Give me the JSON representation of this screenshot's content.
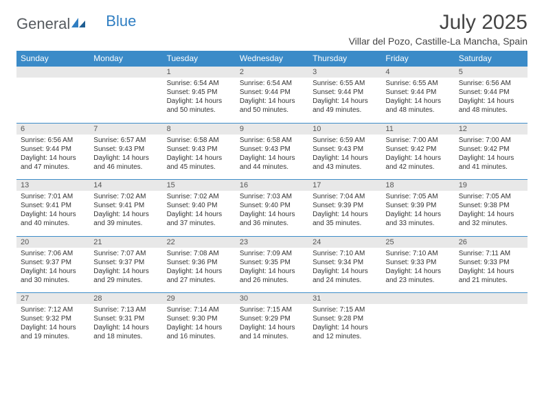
{
  "logo": {
    "text1": "General",
    "text2": "Blue"
  },
  "title": "July 2025",
  "location": "Villar del Pozo, Castille-La Mancha, Spain",
  "colors": {
    "header_bg": "#3b8bc8",
    "header_text": "#ffffff",
    "daynum_bg": "#e8e8e8",
    "border": "#3b8bc8",
    "logo_gray": "#555a5f",
    "logo_blue": "#2f7ec2"
  },
  "weekdays": [
    "Sunday",
    "Monday",
    "Tuesday",
    "Wednesday",
    "Thursday",
    "Friday",
    "Saturday"
  ],
  "weeks": [
    {
      "nums": [
        "",
        "",
        "1",
        "2",
        "3",
        "4",
        "5"
      ],
      "cells": [
        {
          "sunrise": "",
          "sunset": "",
          "daylight1": "",
          "daylight2": ""
        },
        {
          "sunrise": "",
          "sunset": "",
          "daylight1": "",
          "daylight2": ""
        },
        {
          "sunrise": "Sunrise: 6:54 AM",
          "sunset": "Sunset: 9:45 PM",
          "daylight1": "Daylight: 14 hours",
          "daylight2": "and 50 minutes."
        },
        {
          "sunrise": "Sunrise: 6:54 AM",
          "sunset": "Sunset: 9:44 PM",
          "daylight1": "Daylight: 14 hours",
          "daylight2": "and 50 minutes."
        },
        {
          "sunrise": "Sunrise: 6:55 AM",
          "sunset": "Sunset: 9:44 PM",
          "daylight1": "Daylight: 14 hours",
          "daylight2": "and 49 minutes."
        },
        {
          "sunrise": "Sunrise: 6:55 AM",
          "sunset": "Sunset: 9:44 PM",
          "daylight1": "Daylight: 14 hours",
          "daylight2": "and 48 minutes."
        },
        {
          "sunrise": "Sunrise: 6:56 AM",
          "sunset": "Sunset: 9:44 PM",
          "daylight1": "Daylight: 14 hours",
          "daylight2": "and 48 minutes."
        }
      ]
    },
    {
      "nums": [
        "6",
        "7",
        "8",
        "9",
        "10",
        "11",
        "12"
      ],
      "cells": [
        {
          "sunrise": "Sunrise: 6:56 AM",
          "sunset": "Sunset: 9:44 PM",
          "daylight1": "Daylight: 14 hours",
          "daylight2": "and 47 minutes."
        },
        {
          "sunrise": "Sunrise: 6:57 AM",
          "sunset": "Sunset: 9:43 PM",
          "daylight1": "Daylight: 14 hours",
          "daylight2": "and 46 minutes."
        },
        {
          "sunrise": "Sunrise: 6:58 AM",
          "sunset": "Sunset: 9:43 PM",
          "daylight1": "Daylight: 14 hours",
          "daylight2": "and 45 minutes."
        },
        {
          "sunrise": "Sunrise: 6:58 AM",
          "sunset": "Sunset: 9:43 PM",
          "daylight1": "Daylight: 14 hours",
          "daylight2": "and 44 minutes."
        },
        {
          "sunrise": "Sunrise: 6:59 AM",
          "sunset": "Sunset: 9:43 PM",
          "daylight1": "Daylight: 14 hours",
          "daylight2": "and 43 minutes."
        },
        {
          "sunrise": "Sunrise: 7:00 AM",
          "sunset": "Sunset: 9:42 PM",
          "daylight1": "Daylight: 14 hours",
          "daylight2": "and 42 minutes."
        },
        {
          "sunrise": "Sunrise: 7:00 AM",
          "sunset": "Sunset: 9:42 PM",
          "daylight1": "Daylight: 14 hours",
          "daylight2": "and 41 minutes."
        }
      ]
    },
    {
      "nums": [
        "13",
        "14",
        "15",
        "16",
        "17",
        "18",
        "19"
      ],
      "cells": [
        {
          "sunrise": "Sunrise: 7:01 AM",
          "sunset": "Sunset: 9:41 PM",
          "daylight1": "Daylight: 14 hours",
          "daylight2": "and 40 minutes."
        },
        {
          "sunrise": "Sunrise: 7:02 AM",
          "sunset": "Sunset: 9:41 PM",
          "daylight1": "Daylight: 14 hours",
          "daylight2": "and 39 minutes."
        },
        {
          "sunrise": "Sunrise: 7:02 AM",
          "sunset": "Sunset: 9:40 PM",
          "daylight1": "Daylight: 14 hours",
          "daylight2": "and 37 minutes."
        },
        {
          "sunrise": "Sunrise: 7:03 AM",
          "sunset": "Sunset: 9:40 PM",
          "daylight1": "Daylight: 14 hours",
          "daylight2": "and 36 minutes."
        },
        {
          "sunrise": "Sunrise: 7:04 AM",
          "sunset": "Sunset: 9:39 PM",
          "daylight1": "Daylight: 14 hours",
          "daylight2": "and 35 minutes."
        },
        {
          "sunrise": "Sunrise: 7:05 AM",
          "sunset": "Sunset: 9:39 PM",
          "daylight1": "Daylight: 14 hours",
          "daylight2": "and 33 minutes."
        },
        {
          "sunrise": "Sunrise: 7:05 AM",
          "sunset": "Sunset: 9:38 PM",
          "daylight1": "Daylight: 14 hours",
          "daylight2": "and 32 minutes."
        }
      ]
    },
    {
      "nums": [
        "20",
        "21",
        "22",
        "23",
        "24",
        "25",
        "26"
      ],
      "cells": [
        {
          "sunrise": "Sunrise: 7:06 AM",
          "sunset": "Sunset: 9:37 PM",
          "daylight1": "Daylight: 14 hours",
          "daylight2": "and 30 minutes."
        },
        {
          "sunrise": "Sunrise: 7:07 AM",
          "sunset": "Sunset: 9:37 PM",
          "daylight1": "Daylight: 14 hours",
          "daylight2": "and 29 minutes."
        },
        {
          "sunrise": "Sunrise: 7:08 AM",
          "sunset": "Sunset: 9:36 PM",
          "daylight1": "Daylight: 14 hours",
          "daylight2": "and 27 minutes."
        },
        {
          "sunrise": "Sunrise: 7:09 AM",
          "sunset": "Sunset: 9:35 PM",
          "daylight1": "Daylight: 14 hours",
          "daylight2": "and 26 minutes."
        },
        {
          "sunrise": "Sunrise: 7:10 AM",
          "sunset": "Sunset: 9:34 PM",
          "daylight1": "Daylight: 14 hours",
          "daylight2": "and 24 minutes."
        },
        {
          "sunrise": "Sunrise: 7:10 AM",
          "sunset": "Sunset: 9:33 PM",
          "daylight1": "Daylight: 14 hours",
          "daylight2": "and 23 minutes."
        },
        {
          "sunrise": "Sunrise: 7:11 AM",
          "sunset": "Sunset: 9:33 PM",
          "daylight1": "Daylight: 14 hours",
          "daylight2": "and 21 minutes."
        }
      ]
    },
    {
      "nums": [
        "27",
        "28",
        "29",
        "30",
        "31",
        "",
        ""
      ],
      "cells": [
        {
          "sunrise": "Sunrise: 7:12 AM",
          "sunset": "Sunset: 9:32 PM",
          "daylight1": "Daylight: 14 hours",
          "daylight2": "and 19 minutes."
        },
        {
          "sunrise": "Sunrise: 7:13 AM",
          "sunset": "Sunset: 9:31 PM",
          "daylight1": "Daylight: 14 hours",
          "daylight2": "and 18 minutes."
        },
        {
          "sunrise": "Sunrise: 7:14 AM",
          "sunset": "Sunset: 9:30 PM",
          "daylight1": "Daylight: 14 hours",
          "daylight2": "and 16 minutes."
        },
        {
          "sunrise": "Sunrise: 7:15 AM",
          "sunset": "Sunset: 9:29 PM",
          "daylight1": "Daylight: 14 hours",
          "daylight2": "and 14 minutes."
        },
        {
          "sunrise": "Sunrise: 7:15 AM",
          "sunset": "Sunset: 9:28 PM",
          "daylight1": "Daylight: 14 hours",
          "daylight2": "and 12 minutes."
        },
        {
          "sunrise": "",
          "sunset": "",
          "daylight1": "",
          "daylight2": ""
        },
        {
          "sunrise": "",
          "sunset": "",
          "daylight1": "",
          "daylight2": ""
        }
      ]
    }
  ]
}
